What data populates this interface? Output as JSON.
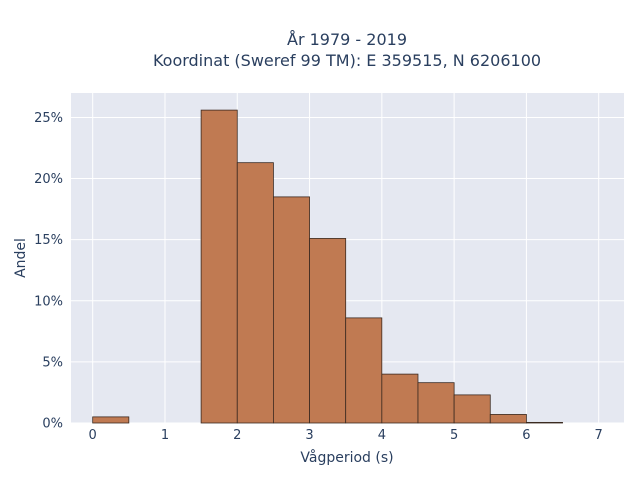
{
  "chart_data": {
    "type": "bar",
    "title": [
      "År 1979 - 2019",
      "Koordinat (Sweref 99 TM): E 359515, N 6206100"
    ],
    "xlabel": "Vågperiod (s)",
    "ylabel": "Andel",
    "xlim": [
      -0.3,
      7.35
    ],
    "ylim": [
      0,
      0.27
    ],
    "xticks": [
      0,
      1,
      2,
      3,
      4,
      5,
      6,
      7
    ],
    "xtick_labels": [
      "0",
      "1",
      "2",
      "3",
      "4",
      "5",
      "6",
      "7"
    ],
    "yticks": [
      0,
      0.05,
      0.1,
      0.15,
      0.2,
      0.25
    ],
    "ytick_labels": [
      "0%",
      "5%",
      "10%",
      "15%",
      "20%",
      "25%"
    ],
    "bin_width": 0.5,
    "bins": [
      0,
      0.5,
      1,
      1.5,
      2,
      2.5,
      3,
      3.5,
      4,
      4.5,
      5,
      5.5
    ],
    "values": [
      0.005,
      0,
      0,
      0.256,
      0.213,
      0.185,
      0.151,
      0.086,
      0.04,
      0.033,
      0.023,
      0.007
    ],
    "extra_bins": [
      6.0
    ],
    "extra_values": [
      0.0005
    ],
    "grid": true,
    "colors": {
      "bar": "#c07a52",
      "bar_edge": "#3b2a20",
      "plot_bg": "#e5e8f1",
      "grid": "#ffffff"
    }
  }
}
